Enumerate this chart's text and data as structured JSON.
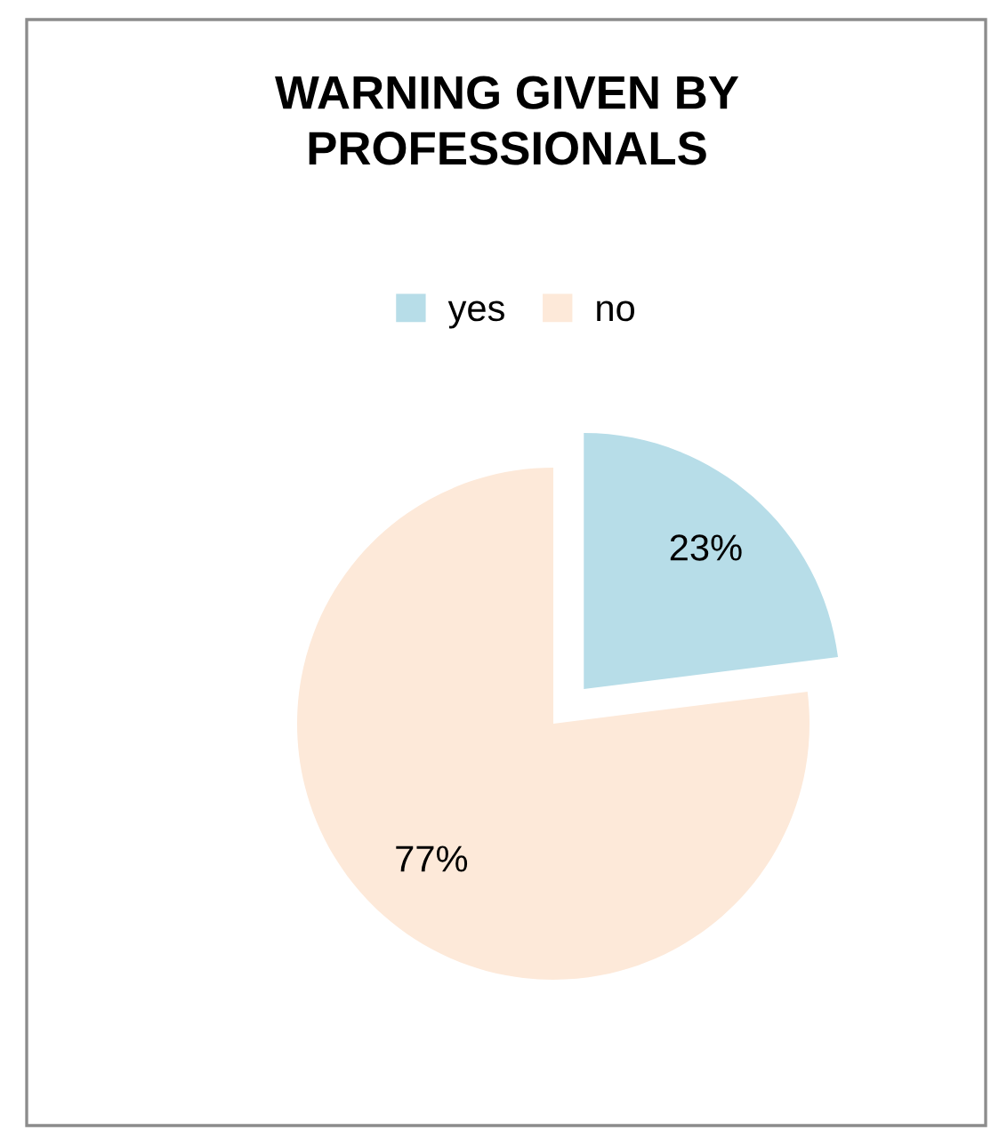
{
  "chart_data": {
    "type": "pie",
    "title": "WARNING GIVEN BY\nPROFESSIONALS",
    "categories": [
      "yes",
      "no"
    ],
    "values": [
      23,
      77
    ],
    "colors": [
      "#b7dde8",
      "#fde9d9"
    ],
    "value_labels": [
      "23%",
      "77%"
    ],
    "legend": "top"
  }
}
